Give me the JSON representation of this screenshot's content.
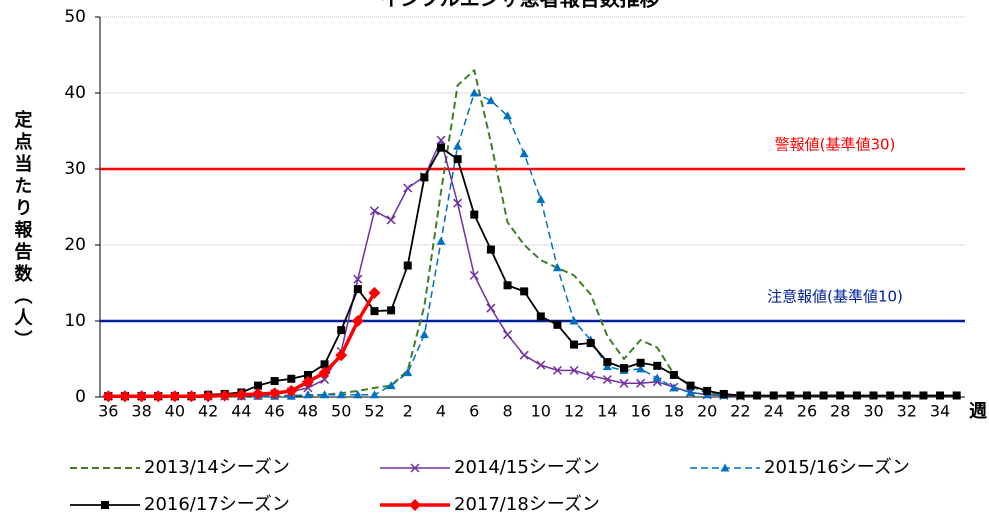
{
  "chart_data": {
    "type": "line",
    "title": "インフルエンザ患者報告数推移",
    "y_label": "定点当たり報告数（人）",
    "x_label": "週",
    "categories": [
      "36",
      null,
      "38",
      null,
      "40",
      null,
      "42",
      null,
      "44",
      null,
      "46",
      null,
      "48",
      null,
      "50",
      null,
      "52",
      null,
      "2",
      null,
      "4",
      null,
      "6",
      null,
      "8",
      null,
      "10",
      null,
      "12",
      null,
      "14",
      null,
      "16",
      null,
      "18",
      null,
      "20",
      null,
      "22",
      null,
      "24",
      null,
      "26",
      null,
      "28",
      null,
      "30",
      null,
      "32",
      null,
      "34",
      null
    ],
    "ylim": [
      0,
      50
    ],
    "yticks": [
      0,
      10,
      20,
      30,
      40,
      50
    ],
    "grid": true,
    "reference_lines": [
      {
        "value": 30,
        "label": "警報値(基準値30)",
        "color": "#ff0000"
      },
      {
        "value": 10,
        "label": "注意報値(基準値10)",
        "color": "#00209f"
      }
    ],
    "series": [
      {
        "name": "2013/14シーズン",
        "color": "#3f7f22",
        "dash": true,
        "marker": "none",
        "width": 2,
        "values": [
          0.1,
          0.1,
          0.1,
          0.1,
          0.1,
          0.1,
          0.1,
          0.1,
          0.1,
          0.1,
          0.1,
          0.2,
          0.2,
          0.3,
          0.5,
          0.8,
          1.2,
          1.5,
          3.5,
          12,
          27,
          41,
          43,
          33.5,
          23,
          20,
          18,
          17,
          16,
          13.5,
          8,
          5,
          7.5,
          6.5,
          3,
          1.5,
          0.5,
          0.3,
          0.2,
          null,
          null,
          null,
          null,
          null,
          null,
          null,
          null,
          null,
          null,
          null,
          null,
          null
        ]
      },
      {
        "name": "2014/15シーズン",
        "color": "#7030a0",
        "dash": false,
        "marker": "x",
        "width": 1.5,
        "values": [
          0.1,
          0.1,
          0.1,
          0.1,
          0.1,
          0.1,
          0.1,
          0.1,
          0.1,
          0.2,
          0.4,
          0.7,
          1.2,
          2.3,
          6,
          15.5,
          24.5,
          23.3,
          27.5,
          29,
          33.8,
          25.5,
          16,
          11.7,
          8.2,
          5.5,
          4.2,
          3.5,
          3.5,
          2.8,
          2.3,
          1.8,
          1.8,
          2,
          1.3,
          0.6,
          0.3,
          0.2,
          0.1,
          null,
          null,
          null,
          null,
          null,
          null,
          null,
          null,
          null,
          null,
          null,
          null,
          null
        ]
      },
      {
        "name": "2015/16シーズン",
        "color": "#0070c0",
        "dash": true,
        "marker": "triangle",
        "width": 1.5,
        "values": [
          0.1,
          0.1,
          0.1,
          0.1,
          0.1,
          0.1,
          0.1,
          0.1,
          0.1,
          0.1,
          0.1,
          0.1,
          0.3,
          0.3,
          0.3,
          0.3,
          0.3,
          1.5,
          3.2,
          8.2,
          20.5,
          33,
          40,
          39,
          37,
          32,
          26,
          17,
          10,
          7.5,
          4,
          3.5,
          3.7,
          2.5,
          1.2,
          0.6,
          0.3,
          0.2,
          null,
          null,
          null,
          null,
          null,
          null,
          null,
          null,
          null,
          null,
          null,
          null,
          null,
          null
        ]
      },
      {
        "name": "2016/17シーズン",
        "color": "#000000",
        "dash": false,
        "marker": "square",
        "width": 1.8,
        "values": [
          0.1,
          0.1,
          0.1,
          0.1,
          0.1,
          0.1,
          0.3,
          0.4,
          0.6,
          1.5,
          2.1,
          2.4,
          2.9,
          4.3,
          8.8,
          14.2,
          11.3,
          11.4,
          17.3,
          28.9,
          32.8,
          31.3,
          24,
          19.4,
          14.7,
          13.9,
          10.6,
          9.5,
          6.9,
          7.1,
          4.6,
          3.8,
          4.5,
          4.1,
          2.9,
          1.5,
          0.8,
          0.4,
          0.2,
          0.2,
          0.2,
          0.2,
          0.2,
          0.2,
          0.2,
          0.2,
          0.2,
          0.2,
          0.2,
          0.2,
          0.2,
          0.2
        ]
      },
      {
        "name": "2017/18シーズン",
        "color": "#ff0000",
        "dash": false,
        "marker": "diamond",
        "width": 3.5,
        "values": [
          0.1,
          0.1,
          0.1,
          0.1,
          0.1,
          0.1,
          0.1,
          0.2,
          0.3,
          0.4,
          0.5,
          0.8,
          2,
          3.2,
          5.5,
          10,
          13.7,
          null,
          null,
          null,
          null,
          null,
          null,
          null,
          null,
          null,
          null,
          null,
          null,
          null,
          null,
          null,
          null,
          null,
          null,
          null,
          null,
          null,
          null,
          null,
          null,
          null,
          null,
          null,
          null,
          null,
          null,
          null,
          null,
          null,
          null,
          null
        ]
      }
    ]
  }
}
